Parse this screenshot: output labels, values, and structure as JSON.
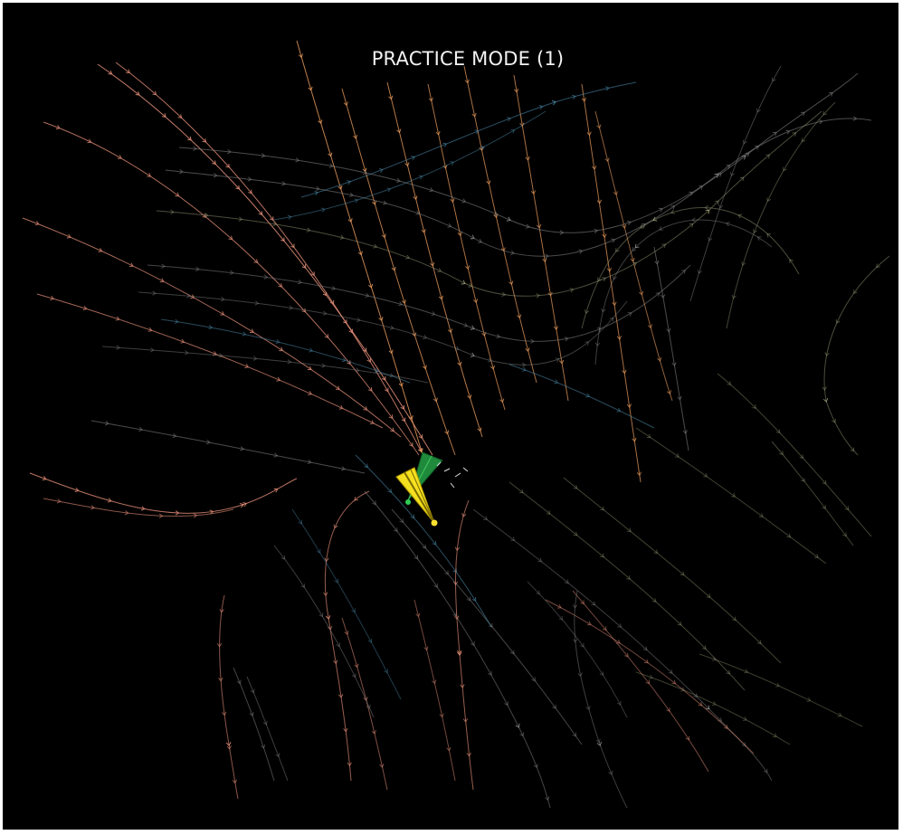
{
  "hud": {
    "mode_title": "PRACTICE MODE (1)"
  },
  "colors": {
    "background": "#000000",
    "title": "#f2f2f2",
    "streamline_warm": "#e8907a",
    "streamline_orange": "#f0a060",
    "streamline_blue": "#4a88a8",
    "streamline_grey": "#8a8a8a",
    "streamline_olive": "#9a9a78",
    "player_cone": "#f5e020",
    "target_cone": "#1f8a3c"
  },
  "player": {
    "icon": "yellow-cone-icon"
  },
  "target": {
    "icon": "green-cone-icon"
  }
}
